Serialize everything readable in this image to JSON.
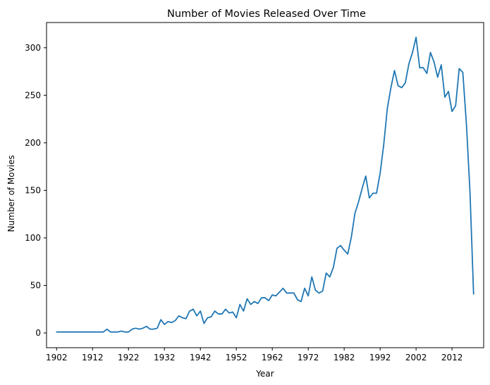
{
  "chart_data": {
    "type": "line",
    "title": "Number of Movies Released Over Time",
    "xlabel": "Year",
    "ylabel": "Number of Movies",
    "xlim": [
      1899.2,
      2020.8
    ],
    "ylim": [
      -15.5,
      326.5
    ],
    "grid": false,
    "line_color": "#1f77b4",
    "xticks": [
      1902,
      1912,
      1922,
      1932,
      1942,
      1952,
      1962,
      1972,
      1982,
      1992,
      2002,
      2012
    ],
    "yticks": [
      0,
      50,
      100,
      150,
      200,
      250,
      300
    ],
    "series": [
      {
        "x": [
          1902,
          1903,
          1904,
          1905,
          1906,
          1907,
          1908,
          1909,
          1910,
          1911,
          1912,
          1913,
          1914,
          1915,
          1916,
          1917,
          1918,
          1919,
          1920,
          1921,
          1922,
          1923,
          1924,
          1925,
          1926,
          1927,
          1928,
          1929,
          1930,
          1931,
          1932,
          1933,
          1934,
          1935,
          1936,
          1937,
          1938,
          1939,
          1940,
          1941,
          1942,
          1943,
          1944,
          1945,
          1946,
          1947,
          1948,
          1949,
          1950,
          1951,
          1952,
          1953,
          1954,
          1955,
          1956,
          1957,
          1958,
          1959,
          1960,
          1961,
          1962,
          1963,
          1964,
          1965,
          1966,
          1967,
          1968,
          1969,
          1970,
          1971,
          1972,
          1973,
          1974,
          1975,
          1976,
          1977,
          1978,
          1979,
          1980,
          1981,
          1982,
          1983,
          1984,
          1985,
          1986,
          1987,
          1988,
          1989,
          1990,
          1991,
          1992,
          1993,
          1994,
          1995,
          1996,
          1997,
          1998,
          1999,
          2000,
          2001,
          2002,
          2003,
          2004,
          2005,
          2006,
          2007,
          2008,
          2009,
          2010,
          2011,
          2012,
          2013,
          2014,
          2015,
          2016,
          2017,
          2018
        ],
        "y": [
          1,
          1,
          1,
          1,
          1,
          1,
          1,
          1,
          1,
          1,
          1,
          1,
          1,
          1,
          4,
          1,
          1,
          1,
          2,
          1,
          1,
          4,
          5,
          4,
          5,
          7,
          4,
          4,
          5,
          14,
          9,
          12,
          11,
          13,
          18,
          16,
          15,
          23,
          25,
          18,
          23,
          10,
          16,
          17,
          23,
          20,
          20,
          25,
          21,
          22,
          16,
          30,
          23,
          36,
          30,
          33,
          31,
          37,
          37,
          34,
          40,
          39,
          43,
          47,
          42,
          42,
          42,
          35,
          33,
          47,
          39,
          59,
          45,
          42,
          44,
          63,
          59,
          69,
          89,
          92,
          87,
          83,
          101,
          126,
          138,
          152,
          165,
          142,
          147,
          147,
          168,
          198,
          236,
          258,
          276,
          260,
          258,
          263,
          283,
          295,
          311,
          279,
          279,
          273,
          295,
          285,
          269,
          282,
          248,
          254,
          233,
          239,
          278,
          274,
          220,
          148,
          41
        ]
      }
    ]
  }
}
